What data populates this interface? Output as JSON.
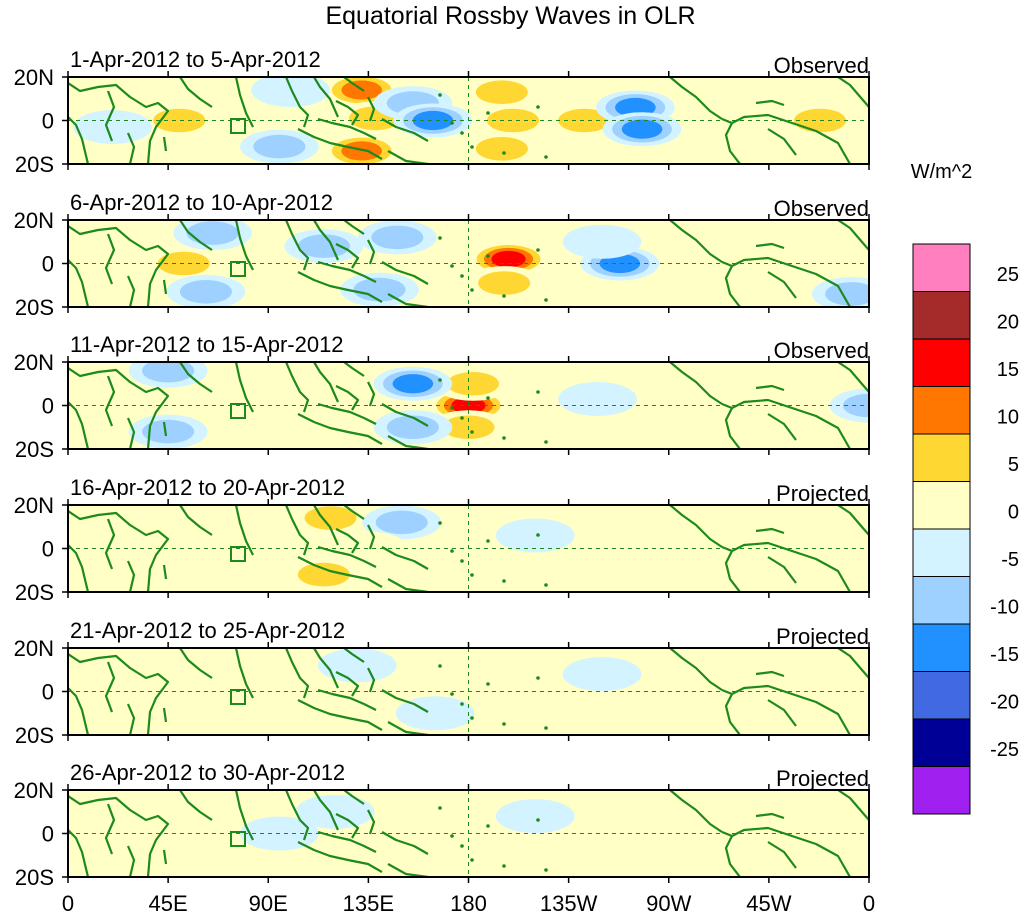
{
  "title": "Equatorial Rossby Waves in OLR",
  "colorbar": {
    "units": "W/m^2",
    "levels": [
      "25",
      "20",
      "15",
      "10",
      "5",
      "0",
      "-5",
      "-10",
      "-15",
      "-20",
      "-25"
    ],
    "colors": [
      "#ff7fbf",
      "#a52a2a",
      "#ff0000",
      "#ff7600",
      "#ffd733",
      "#ffffc6",
      "#d2f3ff",
      "#9ed1ff",
      "#2191ff",
      "#4169e1",
      "#000096",
      "#a020f0"
    ]
  },
  "chart_data": [
    {
      "type": "heatmap",
      "date_range": "1-Apr-2012 to 5-Apr-2012",
      "kind": "Observed",
      "x_ticks": [
        "0",
        "45E",
        "90E",
        "135E",
        "180",
        "135W",
        "90W",
        "45W",
        "0"
      ],
      "y_ticks": [
        "20N",
        "0",
        "20S"
      ],
      "lon_range": [
        0,
        360
      ],
      "lat_range": [
        -20,
        20
      ],
      "blobs": [
        {
          "lon": 50,
          "lat": 0,
          "value": 12
        },
        {
          "lon": 132,
          "lat": 14,
          "value": 14
        },
        {
          "lon": 138,
          "lat": 1,
          "value": 9
        },
        {
          "lon": 132,
          "lat": -14,
          "value": 15
        },
        {
          "lon": 155,
          "lat": 8,
          "value": -12
        },
        {
          "lon": 164,
          "lat": 0,
          "value": -16
        },
        {
          "lon": 195,
          "lat": 13,
          "value": 12
        },
        {
          "lon": 200,
          "lat": 0,
          "value": 10
        },
        {
          "lon": 195,
          "lat": -13,
          "value": 12
        },
        {
          "lon": 232,
          "lat": 0,
          "value": 10
        },
        {
          "lon": 255,
          "lat": 6,
          "value": -15
        },
        {
          "lon": 258,
          "lat": -4,
          "value": -15
        },
        {
          "lon": 338,
          "lat": 0,
          "value": 9
        },
        {
          "lon": 20,
          "lat": -3,
          "value": -7
        },
        {
          "lon": 95,
          "lat": -12,
          "value": -11
        },
        {
          "lon": 100,
          "lat": 14,
          "value": -6
        }
      ]
    },
    {
      "type": "heatmap",
      "date_range": "6-Apr-2012 to 10-Apr-2012",
      "kind": "Observed",
      "x_ticks": [
        "0",
        "45E",
        "90E",
        "135E",
        "180",
        "135W",
        "90W",
        "45W",
        "0"
      ],
      "y_ticks": [
        "20N",
        "0",
        "20S"
      ],
      "lon_range": [
        0,
        360
      ],
      "lat_range": [
        -20,
        20
      ],
      "blobs": [
        {
          "lon": 52,
          "lat": 0,
          "value": 10
        },
        {
          "lon": 65,
          "lat": 14,
          "value": -11
        },
        {
          "lon": 62,
          "lat": -13,
          "value": -11
        },
        {
          "lon": 115,
          "lat": 8,
          "value": -8
        },
        {
          "lon": 140,
          "lat": -12,
          "value": -9
        },
        {
          "lon": 148,
          "lat": 12,
          "value": -8
        },
        {
          "lon": 198,
          "lat": 2,
          "value": 18
        },
        {
          "lon": 196,
          "lat": -9,
          "value": 10
        },
        {
          "lon": 248,
          "lat": 0,
          "value": -17
        },
        {
          "lon": 240,
          "lat": 10,
          "value": -6
        },
        {
          "lon": 330,
          "lat": 0,
          "value": 5
        },
        {
          "lon": 352,
          "lat": -14,
          "value": -8
        }
      ]
    },
    {
      "type": "heatmap",
      "date_range": "11-Apr-2012 to 15-Apr-2012",
      "kind": "Observed",
      "x_ticks": [
        "0",
        "45E",
        "90E",
        "135E",
        "180",
        "135W",
        "90W",
        "45W",
        "0"
      ],
      "y_ticks": [
        "20N",
        "0",
        "20S"
      ],
      "lon_range": [
        0,
        360
      ],
      "lat_range": [
        -20,
        20
      ],
      "blobs": [
        {
          "lon": 180,
          "lat": 0,
          "value": 18
        },
        {
          "lon": 182,
          "lat": 10,
          "value": 10
        },
        {
          "lon": 180,
          "lat": -10,
          "value": 10
        },
        {
          "lon": 155,
          "lat": 10,
          "value": -14
        },
        {
          "lon": 155,
          "lat": -10,
          "value": -12
        },
        {
          "lon": 25,
          "lat": 4,
          "value": 5
        },
        {
          "lon": 80,
          "lat": 4,
          "value": 6
        },
        {
          "lon": 45,
          "lat": 16,
          "value": -10
        },
        {
          "lon": 45,
          "lat": -12,
          "value": -10
        },
        {
          "lon": 238,
          "lat": 3,
          "value": -7
        },
        {
          "lon": 360,
          "lat": 0,
          "value": -12
        }
      ]
    },
    {
      "type": "heatmap",
      "date_range": "16-Apr-2012 to 20-Apr-2012",
      "kind": "Projected",
      "x_ticks": [
        "0",
        "45E",
        "90E",
        "135E",
        "180",
        "135W",
        "90W",
        "45W",
        "0"
      ],
      "y_ticks": [
        "20N",
        "0",
        "20S"
      ],
      "lon_range": [
        0,
        360
      ],
      "lat_range": [
        -20,
        20
      ],
      "blobs": [
        {
          "lon": 118,
          "lat": 14,
          "value": 8
        },
        {
          "lon": 115,
          "lat": -12,
          "value": 8
        },
        {
          "lon": 150,
          "lat": 12,
          "value": -11
        },
        {
          "lon": 135,
          "lat": 0,
          "value": 5
        },
        {
          "lon": 20,
          "lat": 3,
          "value": 5
        },
        {
          "lon": 75,
          "lat": 0,
          "value": 3
        },
        {
          "lon": 210,
          "lat": 6,
          "value": -4
        },
        {
          "lon": 265,
          "lat": 0,
          "value": 3
        }
      ]
    },
    {
      "type": "heatmap",
      "date_range": "21-Apr-2012 to 25-Apr-2012",
      "kind": "Projected",
      "x_ticks": [
        "0",
        "45E",
        "90E",
        "135E",
        "180",
        "135W",
        "90W",
        "45W",
        "0"
      ],
      "y_ticks": [
        "20N",
        "0",
        "20S"
      ],
      "lon_range": [
        0,
        360
      ],
      "lat_range": [
        -20,
        20
      ],
      "blobs": [
        {
          "lon": 115,
          "lat": 1,
          "value": 6
        },
        {
          "lon": 70,
          "lat": -15,
          "value": 6
        },
        {
          "lon": 130,
          "lat": 12,
          "value": -4
        },
        {
          "lon": 165,
          "lat": -10,
          "value": -4
        },
        {
          "lon": 240,
          "lat": 8,
          "value": -3
        }
      ]
    },
    {
      "type": "heatmap",
      "date_range": "26-Apr-2012 to 30-Apr-2012",
      "kind": "Projected",
      "x_ticks": [
        "0",
        "45E",
        "90E",
        "135E",
        "180",
        "135W",
        "90W",
        "45W",
        "0"
      ],
      "y_ticks": [
        "20N",
        "0",
        "20S"
      ],
      "lon_range": [
        0,
        360
      ],
      "lat_range": [
        -20,
        20
      ],
      "blobs": [
        {
          "lon": 120,
          "lat": 10,
          "value": -4
        },
        {
          "lon": 95,
          "lat": 0,
          "value": -3
        },
        {
          "lon": 165,
          "lat": 6,
          "value": 3
        },
        {
          "lon": 210,
          "lat": 8,
          "value": -3
        }
      ]
    }
  ]
}
